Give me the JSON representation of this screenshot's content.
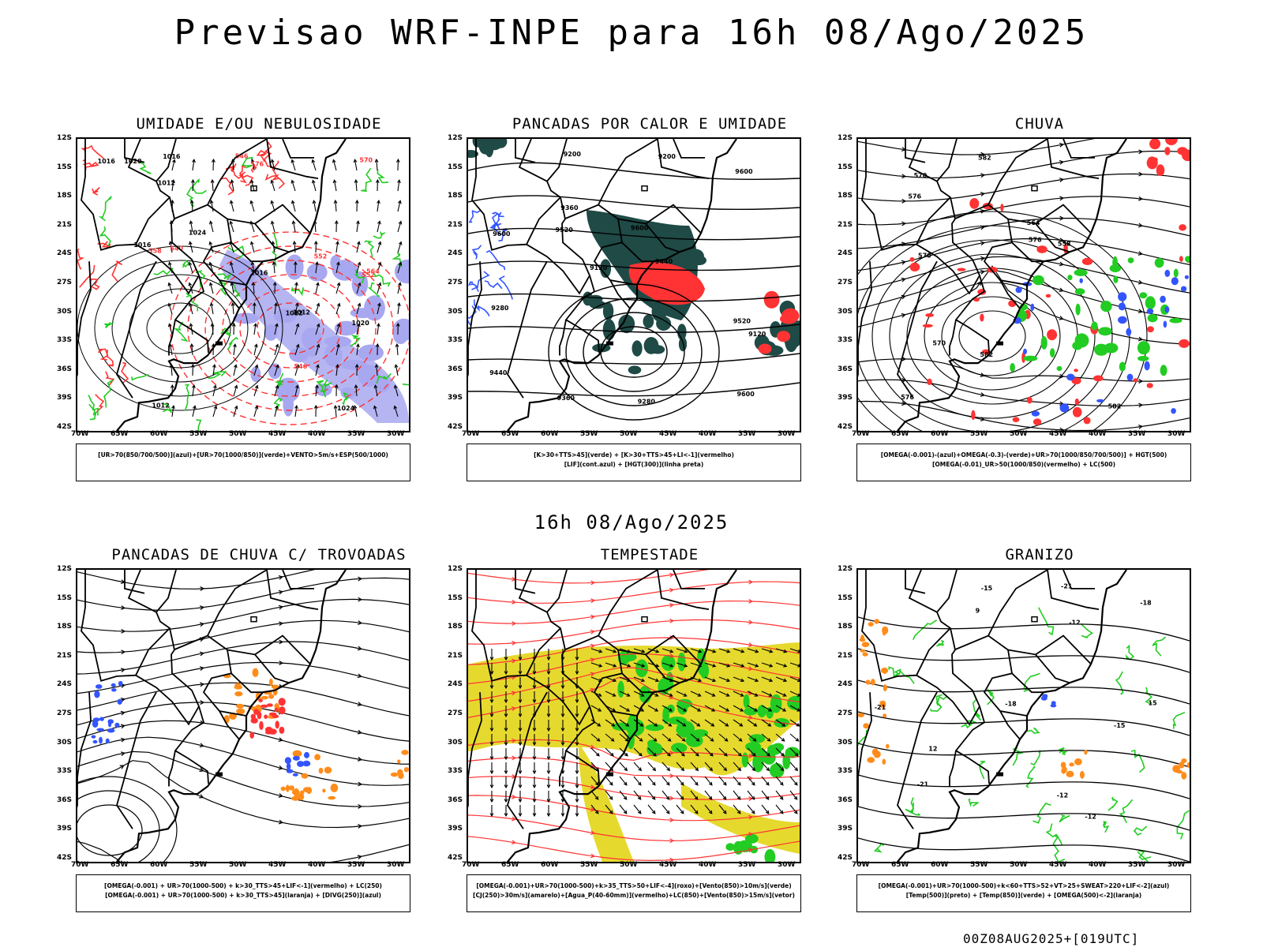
{
  "header": {
    "title": "Previsao WRF-INPE  para 16h 08/Ago/2025",
    "mid_date": "16h 08/Ago/2025",
    "footer": "00Z08AUG2025+[019UTC]"
  },
  "axes": {
    "lat_labels": [
      "12S",
      "15S",
      "18S",
      "21S",
      "24S",
      "27S",
      "30S",
      "33S",
      "36S",
      "39S",
      "42S"
    ],
    "lon_labels": [
      "70W",
      "65W",
      "60W",
      "55W",
      "50W",
      "45W",
      "40W",
      "35W",
      "30W"
    ]
  },
  "colors": {
    "red": "#ff3333",
    "green": "#22cc22",
    "blue": "#3355ff",
    "dark_green": "#1f4a46",
    "orange": "#ff8c1a",
    "yellow": "#e6d92e",
    "lavender": "#a8a8f0"
  },
  "chart_data": [
    {
      "type": "map",
      "title": "UMIDADE E/OU NEBULOSIDADE",
      "legend": [
        "[UR>70(850/700/500)](azul)+[UR>70(1000/850)](verde)+VENTO>5m/s+ESP(500/1000)"
      ],
      "contour_labels": [
        "1012",
        "1012",
        "1016",
        "1020",
        "1024",
        "1024",
        "1016",
        "1012",
        "1020",
        "1016",
        "1016",
        "1012",
        "576",
        "570",
        "564",
        "558",
        "552",
        "546",
        "540",
        "546",
        "552"
      ]
    },
    {
      "type": "map",
      "title": "PANCADAS POR CALOR E UMIDADE",
      "legend": [
        "[K>30+TTS>45](verde) + [K>30+TTS>45+LI<-1](vermelho)",
        "[LIF](cont.azul) + [HGT(300)](linha preta)"
      ],
      "contour_labels": [
        "9600",
        "9600",
        "9600",
        "9600",
        "9520",
        "9520",
        "9440",
        "9440",
        "9360",
        "9360",
        "9280",
        "9200",
        "9120",
        "9280",
        "9200",
        "9120"
      ]
    },
    {
      "type": "map",
      "title": "CHUVA",
      "legend": [
        "[OMEGA(-0.001)-(azul)+OMEGA(-0.3)-(verde)+UR>70(1000/850/700/500)] + HGT(500)",
        "[OMEGA(-0.01)_UR>50(1000/850)(vermelho) + LC(500)"
      ],
      "contour_labels": [
        "582",
        "582",
        "576",
        "576",
        "570",
        "570",
        "582",
        "576",
        "570",
        "564",
        "558"
      ]
    },
    {
      "type": "map",
      "title": "PANCADAS DE CHUVA C/ TROVOADAS",
      "legend": [
        "[OMEGA(-0.001) + UR>70(1000-500) + k>30_TTS>45+LIF<-1](vermelho) + LC(250)",
        "[OMEGA(-0.001) + UR>70(1000-500) + k>30_TTS>45](laranja) + [DIVG(250)](azul)"
      ],
      "contour_labels": []
    },
    {
      "type": "map",
      "title": "TEMPESTADE",
      "legend": [
        "[OMEGA(-0.001)+UR>70(1000-500)+k>35_TTS>50+LIF<-4](roxo)+[Vento(850)>10m/s](verde)",
        "[CJ(250)>30m/s](amarelo)+[Agua_P(40-60mm)](vermelho)+LC(850)+[Vento(850)>15m/s](vetor)"
      ],
      "contour_labels": []
    },
    {
      "type": "map",
      "title": "GRANIZO",
      "legend": [
        "[OMEGA(-0.001)+UR>70(1000-500)+k<60+TTS>52+VT>25+SWEAT>220+LIF<-2](azul)",
        "[Temp(500)](preto) + [Temp(850)](verde) + [OMEGA(500)<-2](laranja)"
      ],
      "contour_labels": [
        "-12",
        "-12",
        "-15",
        "-18",
        "-21",
        "-21",
        "-15",
        "-18",
        "-21",
        "-12",
        "9",
        "12",
        "15"
      ]
    }
  ]
}
